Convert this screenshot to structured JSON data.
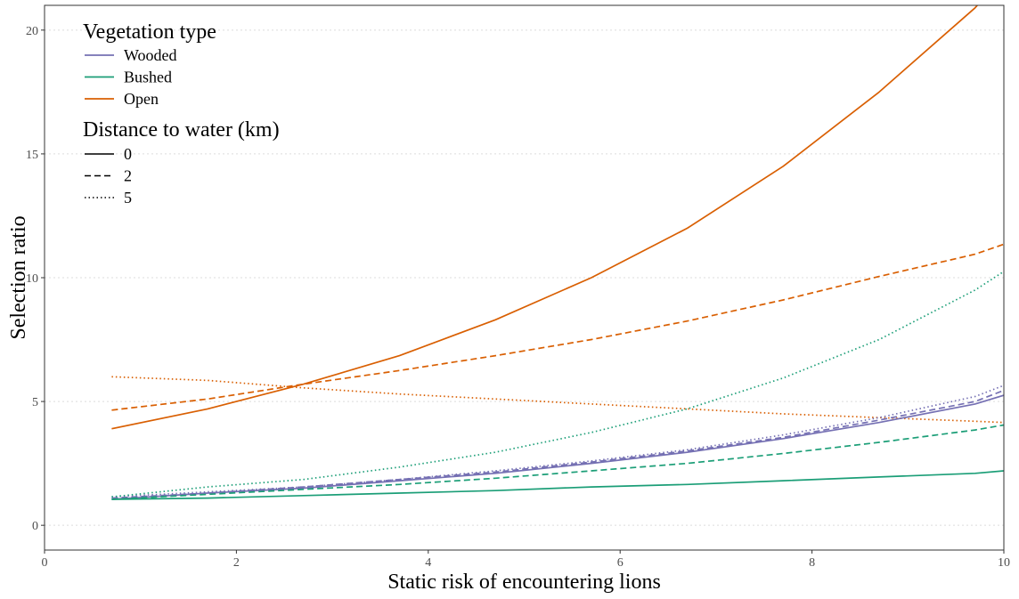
{
  "chart_data": {
    "type": "line",
    "xlabel": "Static risk of encountering lions",
    "ylabel": "Selection ratio",
    "xlim": [
      0,
      10
    ],
    "ylim": [
      -1,
      21
    ],
    "xticks": [
      0,
      2,
      4,
      6,
      8,
      10
    ],
    "yticks": [
      0,
      5,
      10,
      15,
      20
    ],
    "grid": "horizontal dotted",
    "legend_position": "top-left",
    "x": [
      0.7,
      1.7,
      2.7,
      3.7,
      4.7,
      5.7,
      6.7,
      7.7,
      8.7,
      9.7,
      10
    ],
    "legend": {
      "vegetation_title": "Vegetation type",
      "vegetation": [
        {
          "label": "Wooded",
          "color": "#7570b3"
        },
        {
          "label": "Bushed",
          "color": "#1b9e77"
        },
        {
          "label": "Open",
          "color": "#d95f02"
        }
      ],
      "distance_title": "Distance to water (km)",
      "distance": [
        {
          "label": "0",
          "dash": "solid"
        },
        {
          "label": "2",
          "dash": "dashed"
        },
        {
          "label": "5",
          "dash": "dotted"
        }
      ]
    },
    "series": [
      {
        "vegetation": "Open",
        "distance": "0",
        "color": "#d95f02",
        "dash": "solid",
        "values": [
          3.9,
          4.7,
          5.7,
          6.85,
          8.3,
          10.0,
          12.0,
          14.5,
          17.5,
          20.9,
          22.2
        ]
      },
      {
        "vegetation": "Open",
        "distance": "2",
        "color": "#d95f02",
        "dash": "dashed",
        "values": [
          4.65,
          5.1,
          5.7,
          6.25,
          6.85,
          7.5,
          8.25,
          9.1,
          10.05,
          10.95,
          11.35
        ]
      },
      {
        "vegetation": "Open",
        "distance": "5",
        "color": "#d95f02",
        "dash": "dotted",
        "values": [
          6.0,
          5.85,
          5.55,
          5.3,
          5.1,
          4.9,
          4.7,
          4.5,
          4.35,
          4.2,
          4.15
        ]
      },
      {
        "vegetation": "Wooded",
        "distance": "0",
        "color": "#7570b3",
        "dash": "solid",
        "values": [
          1.05,
          1.3,
          1.5,
          1.8,
          2.1,
          2.5,
          2.95,
          3.5,
          4.15,
          4.9,
          5.25
        ]
      },
      {
        "vegetation": "Wooded",
        "distance": "2",
        "color": "#7570b3",
        "dash": "dashed",
        "values": [
          1.1,
          1.3,
          1.55,
          1.85,
          2.15,
          2.55,
          3.0,
          3.55,
          4.25,
          5.0,
          5.45
        ]
      },
      {
        "vegetation": "Wooded",
        "distance": "5",
        "color": "#7570b3",
        "dash": "dotted",
        "values": [
          1.15,
          1.35,
          1.55,
          1.85,
          2.2,
          2.6,
          3.05,
          3.65,
          4.35,
          5.2,
          5.65
        ]
      },
      {
        "vegetation": "Bushed",
        "distance": "0",
        "color": "#1b9e77",
        "dash": "solid",
        "values": [
          1.05,
          1.1,
          1.2,
          1.3,
          1.4,
          1.55,
          1.65,
          1.8,
          1.95,
          2.1,
          2.2
        ]
      },
      {
        "vegetation": "Bushed",
        "distance": "2",
        "color": "#1b9e77",
        "dash": "dashed",
        "values": [
          1.05,
          1.25,
          1.45,
          1.65,
          1.9,
          2.2,
          2.5,
          2.9,
          3.35,
          3.85,
          4.05
        ]
      },
      {
        "vegetation": "Bushed",
        "distance": "5",
        "color": "#1b9e77",
        "dash": "dotted",
        "values": [
          1.15,
          1.55,
          1.85,
          2.35,
          2.95,
          3.75,
          4.7,
          5.95,
          7.5,
          9.5,
          10.25
        ]
      }
    ]
  }
}
